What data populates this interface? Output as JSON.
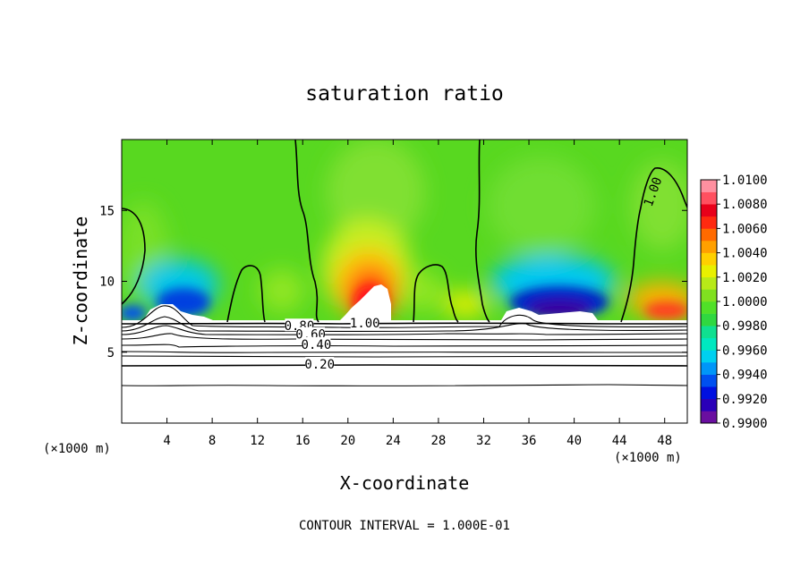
{
  "chart_data": {
    "type": "heatmap",
    "title": "saturation ratio",
    "xlabel": "X-coordinate",
    "ylabel": "Z-coordinate",
    "x_unit_left": "(×1000 m)",
    "x_unit_right": "(×1000 m)",
    "xlim": [
      0,
      50
    ],
    "ylim": [
      0,
      20
    ],
    "x_ticks": [
      4,
      8,
      12,
      16,
      20,
      24,
      28,
      32,
      36,
      40,
      44,
      48
    ],
    "y_ticks": [
      5,
      10,
      15
    ],
    "footer": "CONTOUR INTERVAL = 1.000E-01",
    "colorbar": {
      "min": 0.99,
      "max": 1.01,
      "step": 0.001,
      "tick_labels": [
        "1.0100",
        "1.0080",
        "1.0060",
        "1.0040",
        "1.0020",
        "1.0000",
        "0.9980",
        "0.9960",
        "0.9940",
        "0.9920",
        "0.9900"
      ],
      "colors": [
        "#6a0fa0",
        "#2a00b8",
        "#0010e0",
        "#0050f0",
        "#0096f8",
        "#00d0f0",
        "#00e8c0",
        "#10e090",
        "#30d840",
        "#50e028",
        "#80e020",
        "#b8ea18",
        "#e8f000",
        "#ffd000",
        "#ffa000",
        "#ff6a00",
        "#ff2a10",
        "#e8001a",
        "#ff5060",
        "#ff90a0"
      ]
    },
    "contour_labels": [
      {
        "text": "1.00",
        "x": 47.0,
        "z": 16.3
      },
      {
        "text": "1.00",
        "x": 21.5,
        "z": 7.0
      },
      {
        "text": "0.80",
        "x": 15.7,
        "z": 6.8
      },
      {
        "text": "0.60",
        "x": 16.7,
        "z": 6.2
      },
      {
        "text": "0.40",
        "x": 17.2,
        "z": 5.5
      },
      {
        "text": "0.20",
        "x": 17.5,
        "z": 4.1
      }
    ]
  }
}
